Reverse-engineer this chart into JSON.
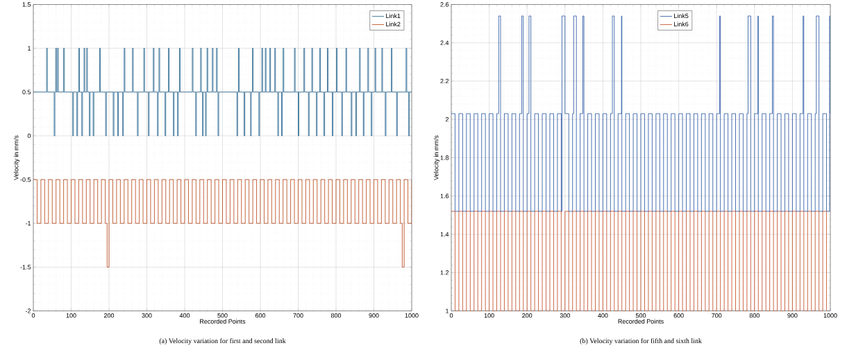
{
  "chart_data": [
    {
      "type": "step",
      "xlabel": "Recorded Points",
      "ylabel": "Velocity in mm/s",
      "annotations": [
        "(a) Velocity variation for first and second link"
      ],
      "xlim": [
        0,
        1000
      ],
      "ylim": [
        -2,
        1.5
      ],
      "xticks": [
        0,
        100,
        200,
        300,
        400,
        500,
        600,
        700,
        800,
        900,
        1000
      ],
      "yticks": [
        -2,
        -1.5,
        -1,
        -0.5,
        0,
        0.5,
        1,
        1.5
      ],
      "grid": true,
      "legend": "top right",
      "series": [
        {
          "name": "Link1",
          "color": "#1f5f8b",
          "x": [
            0,
            35,
            37,
            55,
            57,
            59,
            61,
            64,
            66,
            80,
            82,
            104,
            106,
            115,
            117,
            120,
            122,
            128,
            130,
            134,
            136,
            141,
            143,
            148,
            150,
            158,
            160,
            175,
            177,
            191,
            193,
            211,
            213,
            223,
            225,
            236,
            238,
            240,
            242,
            262,
            264,
            275,
            277,
            292,
            294,
            304,
            306,
            317,
            319,
            328,
            330,
            332,
            334,
            348,
            350,
            357,
            359,
            370,
            372,
            381,
            383,
            386,
            388,
            420,
            422,
            429,
            431,
            442,
            444,
            447,
            449,
            455,
            457,
            459,
            461,
            473,
            475,
            484,
            486,
            488,
            490,
            538,
            540,
            542,
            544,
            557,
            559,
            574,
            576,
            579,
            581,
            596,
            598,
            604,
            606,
            613,
            615,
            625,
            627,
            638,
            640,
            646,
            648,
            656,
            658,
            660,
            662,
            690,
            692,
            700,
            702,
            715,
            717,
            727,
            729,
            736,
            738,
            748,
            750,
            757,
            759,
            768,
            770,
            777,
            779,
            790,
            792,
            801,
            803,
            815,
            817,
            826,
            828,
            840,
            842,
            852,
            854,
            862,
            864,
            872,
            874,
            884,
            886,
            893,
            895,
            903,
            905,
            921,
            923,
            930,
            932,
            946,
            948,
            960,
            962,
            985,
            987,
            992,
            994,
            1000
          ],
          "values": [
            0.5,
            1,
            0.5,
            0,
            0.5,
            1,
            0.5,
            1,
            0.5,
            1,
            0.5,
            0,
            0.5,
            0,
            0.5,
            1,
            0.5,
            0,
            0.5,
            1,
            0.5,
            1,
            0.5,
            0,
            0.5,
            0,
            0.5,
            1,
            0.5,
            0,
            0.5,
            0,
            0.5,
            0,
            0.5,
            0,
            0.5,
            1,
            0.5,
            1,
            0.5,
            0,
            0.5,
            1,
            0.5,
            0,
            0.5,
            1,
            0.5,
            0,
            0.5,
            1,
            0.5,
            0,
            0.5,
            1,
            0.5,
            0,
            0.5,
            0,
            0.5,
            1,
            0.5,
            1,
            0.5,
            0,
            0.5,
            1,
            0.5,
            0,
            0.5,
            0,
            0.5,
            1,
            0.5,
            1,
            0.5,
            1,
            0.5,
            0,
            0.5,
            0,
            0.5,
            1,
            0.5,
            0,
            0.5,
            0,
            0.5,
            1,
            0.5,
            0,
            0.5,
            1,
            0.5,
            1,
            0.5,
            1,
            0.5,
            1,
            0.5,
            0,
            0.5,
            0,
            0.5,
            1,
            0.5,
            1,
            0.5,
            0,
            0.5,
            1,
            0.5,
            0,
            0.5,
            1,
            0.5,
            0,
            0.5,
            1,
            0.5,
            0,
            0.5,
            1,
            0.5,
            0,
            0.5,
            1,
            0.5,
            0,
            0.5,
            1,
            0.5,
            0,
            0.5,
            0,
            0.5,
            1,
            0.5,
            0,
            0.5,
            1,
            0.5,
            0,
            0.5,
            1,
            0.5,
            1,
            0.5,
            0,
            0.5,
            1,
            0.5,
            0,
            0.5,
            1,
            0.5,
            0,
            0.5,
            0.5
          ]
        },
        {
          "name": "Link2",
          "color": "#b8400f",
          "x": [
            0,
            10,
            20,
            30,
            40,
            50,
            60,
            70,
            80,
            90,
            100,
            110,
            120,
            130,
            140,
            150,
            160,
            170,
            180,
            190,
            195,
            200,
            210,
            220,
            230,
            240,
            250,
            260,
            270,
            280,
            290,
            300,
            310,
            320,
            330,
            340,
            350,
            360,
            370,
            380,
            390,
            400,
            410,
            420,
            430,
            440,
            450,
            460,
            470,
            480,
            490,
            500,
            510,
            520,
            530,
            540,
            550,
            560,
            570,
            580,
            590,
            600,
            610,
            620,
            630,
            640,
            650,
            660,
            670,
            680,
            690,
            700,
            710,
            720,
            730,
            740,
            750,
            760,
            770,
            780,
            790,
            800,
            810,
            820,
            830,
            840,
            850,
            860,
            870,
            880,
            890,
            900,
            910,
            920,
            930,
            940,
            950,
            960,
            970,
            975,
            980,
            990,
            1000
          ],
          "values": [
            -0.5,
            -1,
            -0.5,
            -1,
            -0.5,
            -1,
            -0.5,
            -1,
            -0.5,
            -1,
            -0.5,
            -1,
            -0.5,
            -1,
            -0.5,
            -1,
            -0.5,
            -1,
            -0.5,
            -1,
            -1.5,
            -0.5,
            -1,
            -0.5,
            -1,
            -0.5,
            -1,
            -0.5,
            -1,
            -0.5,
            -1,
            -0.5,
            -1,
            -0.5,
            -1,
            -0.5,
            -1,
            -0.5,
            -1,
            -0.5,
            -1,
            -0.5,
            -1,
            -0.5,
            -1,
            -0.5,
            -1,
            -0.5,
            -1,
            -0.5,
            -1,
            -0.5,
            -1,
            -0.5,
            -1,
            -0.5,
            -1,
            -0.5,
            -1,
            -0.5,
            -1,
            -0.5,
            -1,
            -0.5,
            -1,
            -0.5,
            -1,
            -0.5,
            -1,
            -0.5,
            -1,
            -0.5,
            -1,
            -0.5,
            -1,
            -0.5,
            -1,
            -0.5,
            -1,
            -0.5,
            -1,
            -0.5,
            -1,
            -0.5,
            -1,
            -0.5,
            -1,
            -0.5,
            -1,
            -0.5,
            -1,
            -0.5,
            -1,
            -0.5,
            -1,
            -0.5,
            -1,
            -0.5,
            -1,
            -1.5,
            -0.5,
            -1,
            -0.5
          ]
        }
      ]
    },
    {
      "type": "step",
      "xlabel": "Recorded Points",
      "ylabel": "Velocity in mm/s",
      "annotations": [
        "(b) Velocity variation for fifth and sixth link"
      ],
      "xlim": [
        0,
        1000
      ],
      "ylim": [
        1,
        2.6
      ],
      "xticks": [
        0,
        100,
        200,
        300,
        400,
        500,
        600,
        700,
        800,
        900,
        1000
      ],
      "yticks": [
        1,
        1.2,
        1.4,
        1.6,
        1.8,
        2,
        2.2,
        2.4,
        2.6
      ],
      "grid": true,
      "legend": "top",
      "series": [
        {
          "name": "Link5",
          "color": "#1f4f9f",
          "x": [
            0,
            10,
            20,
            30,
            40,
            50,
            60,
            70,
            80,
            90,
            100,
            110,
            120,
            125,
            130,
            140,
            150,
            160,
            170,
            180,
            186,
            190,
            200,
            205,
            210,
            220,
            230,
            240,
            250,
            260,
            270,
            280,
            290,
            292,
            300,
            310,
            320,
            323,
            330,
            340,
            347,
            350,
            360,
            370,
            380,
            390,
            400,
            410,
            420,
            425,
            430,
            440,
            449,
            450,
            460,
            470,
            480,
            490,
            500,
            510,
            520,
            530,
            540,
            550,
            560,
            570,
            580,
            590,
            600,
            610,
            620,
            630,
            640,
            650,
            660,
            670,
            680,
            690,
            700,
            708,
            710,
            720,
            730,
            740,
            750,
            760,
            770,
            780,
            783,
            790,
            800,
            809,
            810,
            820,
            830,
            840,
            847,
            850,
            860,
            870,
            880,
            890,
            900,
            910,
            920,
            928,
            930,
            940,
            950,
            960,
            963,
            970,
            980,
            990,
            998,
            1000
          ],
          "values": [
            2.03,
            1.52,
            2.03,
            1.52,
            2.03,
            1.52,
            2.03,
            1.52,
            2.03,
            1.52,
            2.03,
            1.52,
            2.03,
            2.54,
            1.52,
            2.03,
            1.52,
            2.03,
            1.52,
            2.03,
            2.54,
            1.52,
            2.03,
            2.54,
            1.52,
            2.03,
            1.52,
            2.03,
            1.52,
            2.03,
            1.52,
            2.03,
            1.52,
            2.54,
            2.03,
            1.52,
            2.03,
            2.54,
            1.52,
            2.03,
            2.54,
            1.52,
            2.03,
            1.52,
            2.03,
            1.52,
            2.03,
            1.52,
            2.03,
            2.54,
            1.52,
            2.03,
            2.54,
            1.52,
            2.03,
            1.52,
            2.03,
            1.52,
            2.03,
            1.52,
            2.03,
            1.52,
            2.03,
            1.52,
            2.03,
            1.52,
            2.03,
            1.52,
            2.03,
            1.52,
            2.03,
            1.52,
            2.03,
            1.52,
            2.03,
            1.52,
            2.03,
            1.52,
            2.03,
            2.54,
            1.52,
            2.03,
            1.52,
            2.03,
            1.52,
            2.03,
            1.52,
            2.03,
            2.54,
            1.52,
            2.03,
            2.54,
            1.52,
            2.03,
            1.52,
            2.03,
            2.54,
            1.52,
            2.03,
            1.52,
            2.03,
            1.52,
            2.03,
            1.52,
            2.03,
            2.54,
            1.52,
            2.03,
            1.52,
            2.03,
            2.54,
            1.52,
            2.03,
            1.52,
            2.54,
            2.03
          ]
        },
        {
          "name": "Link6",
          "color": "#c0441a",
          "x": [
            0,
            10,
            20,
            30,
            40,
            50,
            60,
            70,
            80,
            90,
            100,
            110,
            120,
            130,
            140,
            150,
            160,
            170,
            180,
            190,
            200,
            210,
            220,
            230,
            240,
            250,
            260,
            270,
            280,
            290,
            300,
            310,
            320,
            330,
            340,
            350,
            360,
            370,
            380,
            390,
            400,
            410,
            420,
            430,
            440,
            450,
            460,
            470,
            480,
            490,
            500,
            510,
            520,
            530,
            540,
            550,
            560,
            570,
            580,
            590,
            600,
            610,
            620,
            630,
            640,
            650,
            660,
            670,
            680,
            690,
            700,
            710,
            720,
            730,
            740,
            750,
            760,
            770,
            780,
            790,
            800,
            810,
            820,
            830,
            840,
            850,
            860,
            870,
            880,
            890,
            900,
            910,
            920,
            930,
            940,
            950,
            960,
            970,
            980,
            990
          ],
          "values": [
            1.52,
            1,
            1.52,
            1,
            1.52,
            1,
            1.52,
            1,
            1.52,
            1,
            1.52,
            1,
            1.52,
            1,
            1.52,
            1,
            1.52,
            1,
            1.52,
            1,
            1.52,
            1,
            1.52,
            1,
            1.52,
            1,
            1.52,
            1,
            1.52,
            1,
            1.52,
            1,
            1.52,
            1,
            1.52,
            1,
            1.52,
            1,
            1.52,
            1,
            1.52,
            1,
            1.52,
            1,
            1.52,
            1,
            1.52,
            1,
            1.52,
            1,
            1.52,
            1,
            1.52,
            1,
            1.52,
            1,
            1.52,
            1,
            1.52,
            1,
            1.52,
            1,
            1.52,
            1,
            1.52,
            1,
            1.52,
            1,
            1.52,
            1,
            1.52,
            1,
            1.52,
            1,
            1.52,
            1,
            1.52,
            1,
            1.52,
            1,
            1.52,
            1,
            1.52,
            1,
            1.52,
            1,
            1.52,
            1,
            1.52,
            1,
            1.52,
            1,
            1.52,
            1,
            1.52,
            1,
            1.52,
            1,
            1.52,
            1
          ]
        }
      ]
    }
  ]
}
